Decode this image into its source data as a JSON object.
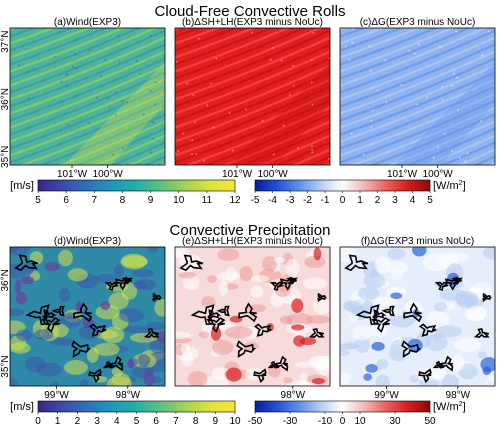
{
  "figure": {
    "sections": [
      {
        "title": "Cloud-Free Convective Rolls"
      },
      {
        "title": "Convective Precipitation"
      }
    ]
  },
  "chart_data": [
    {
      "type": "heatmap",
      "panel_title": "(a)Wind(EXP3)",
      "variable": "wind",
      "xticks": [
        "101°W",
        "100°W"
      ],
      "yticks": [
        "37°N",
        "36°N",
        "35°N"
      ],
      "colorbar": {
        "unit": "[m/s]",
        "ticks": [
          "5",
          "6",
          "7",
          "8",
          "9",
          "10",
          "11",
          "12"
        ],
        "range": [
          5,
          12
        ],
        "colormap": "viridis"
      },
      "pattern": "rolls",
      "contours": false
    },
    {
      "type": "heatmap",
      "panel_title": "(b)ΔSH+LH(EXP3 minus NoUc)",
      "variable": "shlh",
      "xticks": [
        "101°W",
        "100°W"
      ],
      "yticks": [],
      "colorbar": {
        "unit": "[W/m",
        "unit_sup": "2",
        "unit_end": "]",
        "ticks": [
          "-5",
          "-4",
          "-3",
          "-2",
          "-1",
          "0",
          "1",
          "2",
          "3",
          "4",
          "5"
        ],
        "range": [
          -5,
          5
        ],
        "colormap": "blue-white-red"
      },
      "pattern": "rolls",
      "contours": false
    },
    {
      "type": "heatmap",
      "panel_title": "(c)ΔG(EXP3 minus NoUc)",
      "variable": "ground",
      "xticks": [
        "101°W",
        "100°W"
      ],
      "yticks": [],
      "colorbar": null,
      "pattern": "rolls",
      "contours": false
    },
    {
      "type": "heatmap",
      "panel_title": "(d)Wind(EXP3)",
      "variable": "wind",
      "xticks": [
        "99°W",
        "98°W"
      ],
      "yticks": [
        "36°N",
        "35°N"
      ],
      "colorbar": {
        "unit": "[m/s]",
        "ticks": [
          "0",
          "1",
          "2",
          "3",
          "4",
          "5",
          "6",
          "7",
          "8",
          "9",
          "10"
        ],
        "range": [
          0,
          10
        ],
        "colormap": "viridis"
      },
      "pattern": "patchy",
      "contours": true
    },
    {
      "type": "heatmap",
      "panel_title": "(e)ΔSH+LH(EXP3 minus NoUc)",
      "variable": "shlh",
      "xticks": [
        "98°W"
      ],
      "yticks": [],
      "colorbar": {
        "unit": "[W/m",
        "unit_sup": "2",
        "unit_end": "]",
        "ticks": [
          "-50",
          "-30",
          "-10",
          "0",
          "10",
          "30",
          "50"
        ],
        "range": [
          -50,
          50
        ],
        "colormap": "blue-white-red"
      },
      "pattern": "patchy",
      "contours": true
    },
    {
      "type": "heatmap",
      "panel_title": "(f)ΔG(EXP3 minus NoUc)",
      "variable": "ground",
      "xticks": [
        "99°W",
        "98°W"
      ],
      "yticks": [],
      "colorbar": null,
      "pattern": "patchy",
      "contours": true
    }
  ]
}
